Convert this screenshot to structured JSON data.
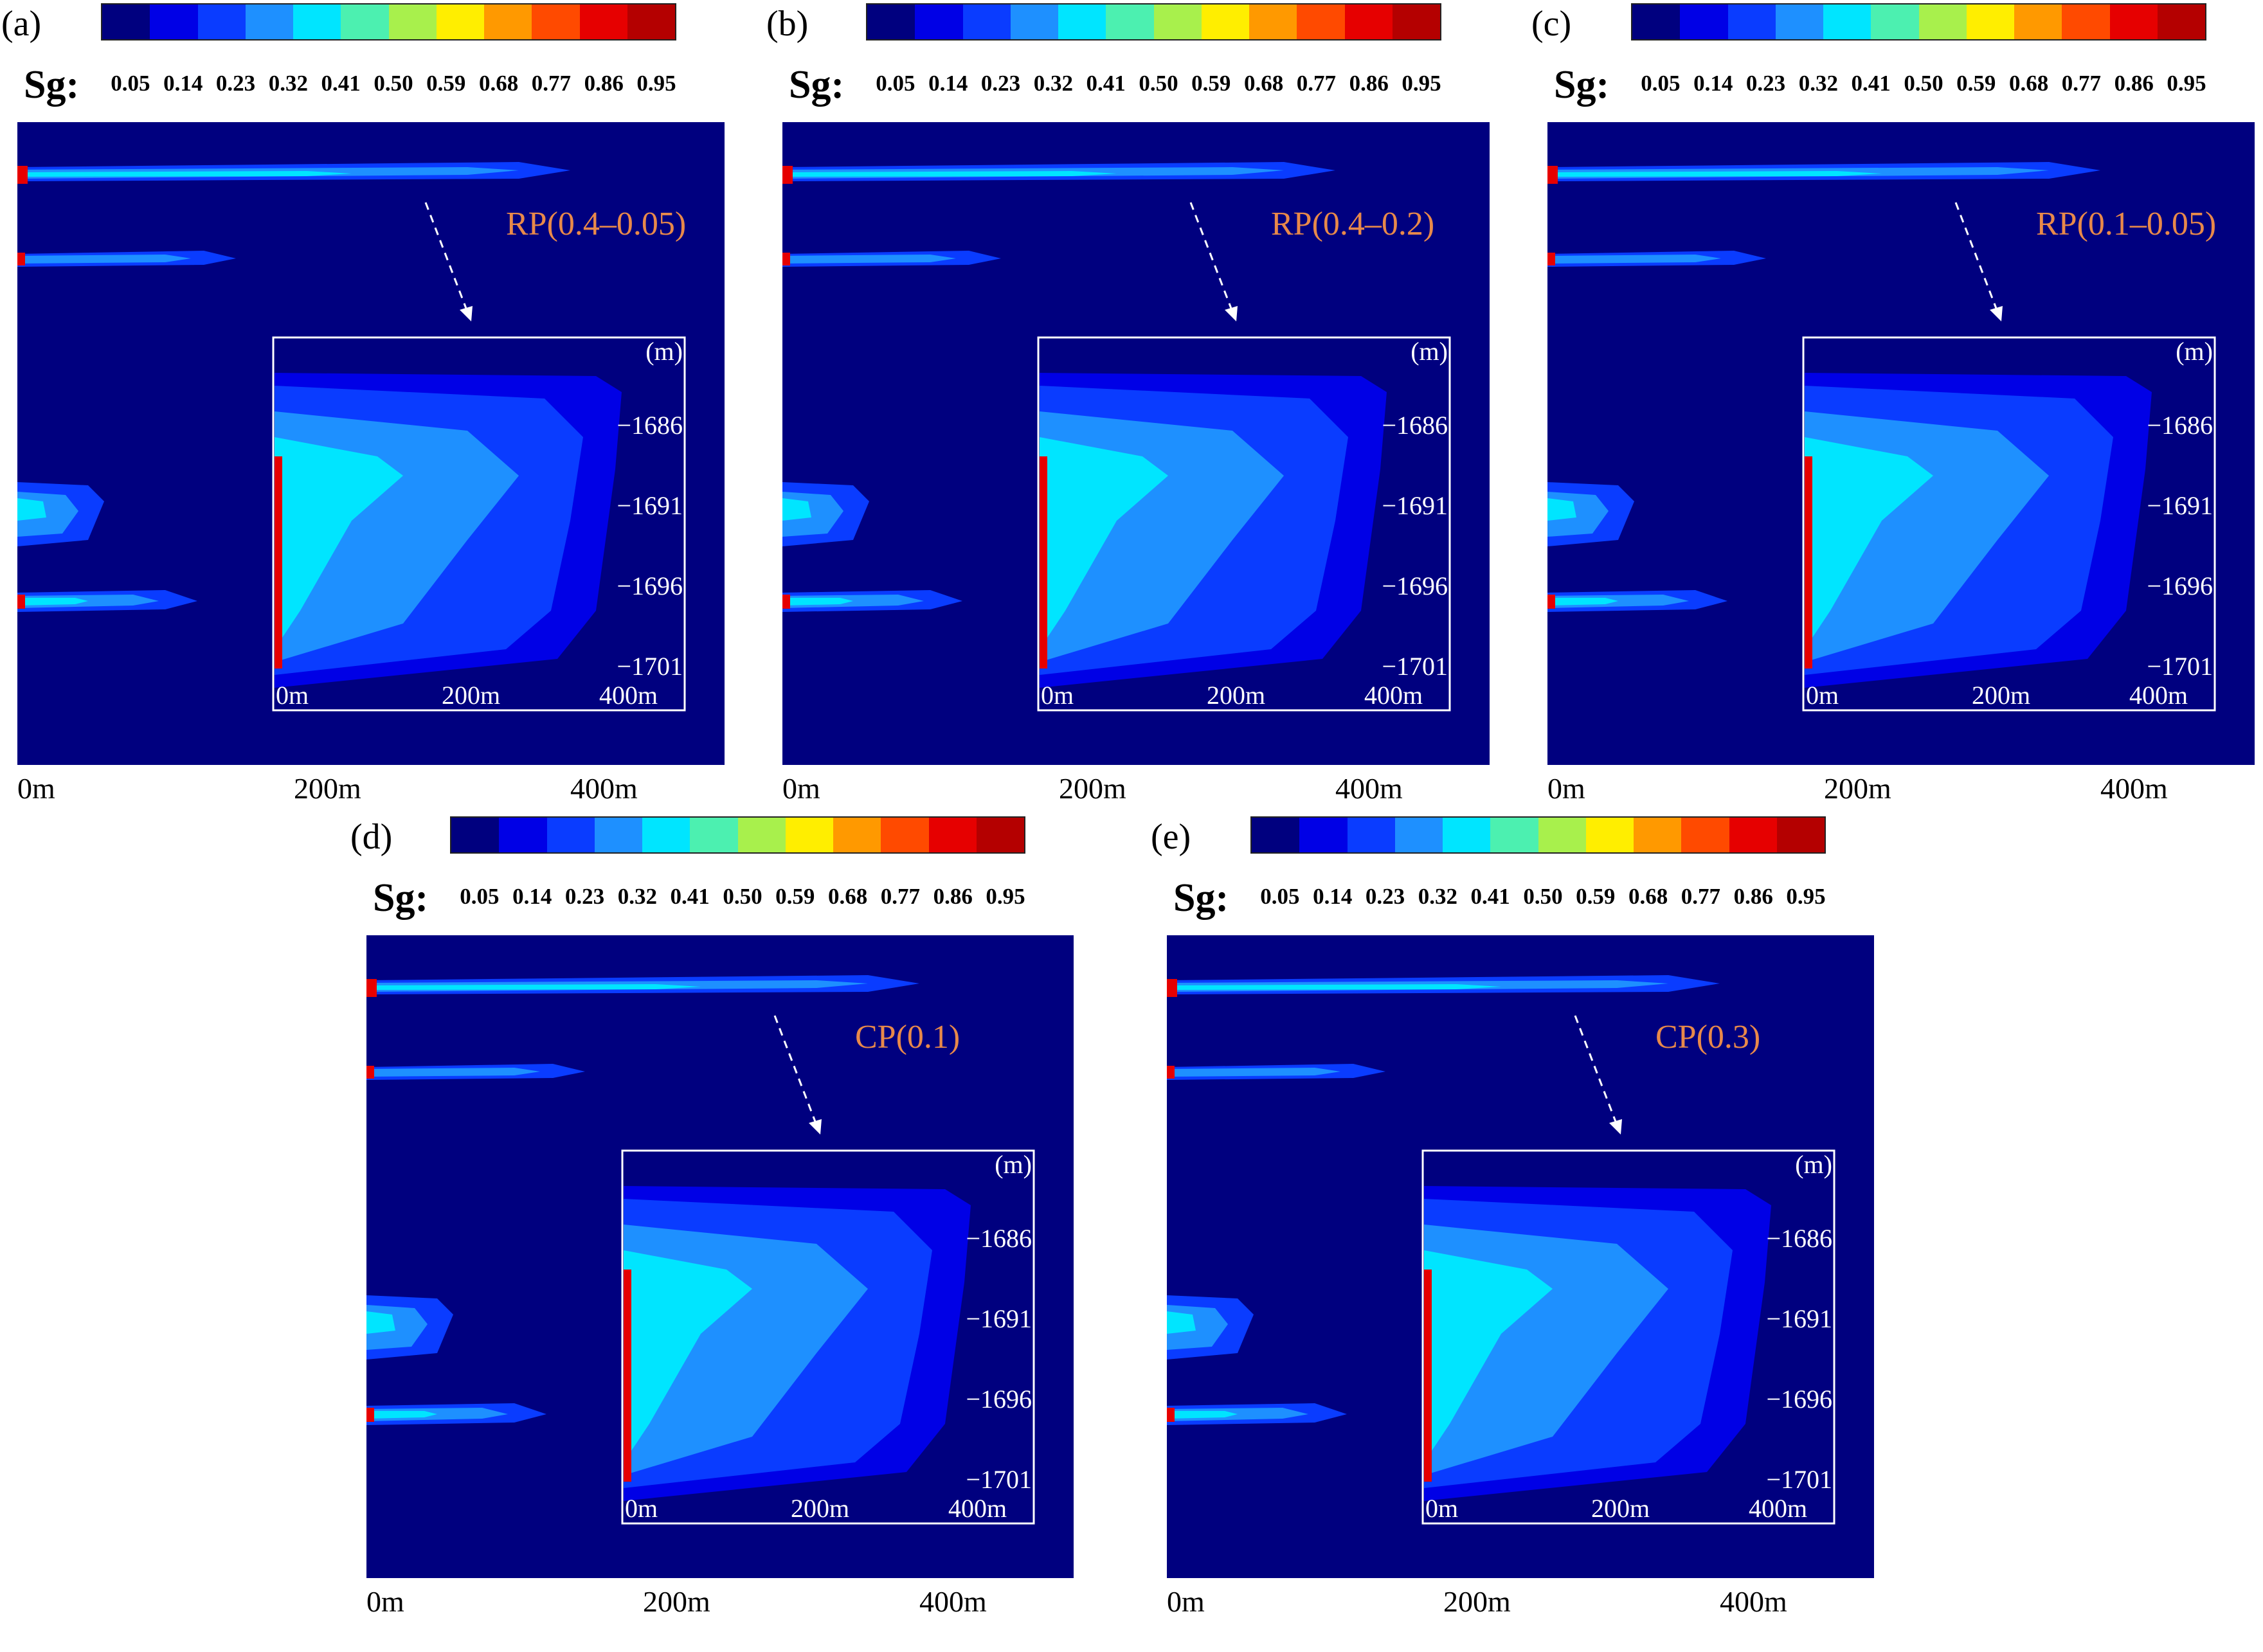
{
  "colorbar": {
    "label": "Sg:",
    "ticks": [
      "0.05",
      "0.14",
      "0.23",
      "0.32",
      "0.41",
      "0.50",
      "0.59",
      "0.68",
      "0.77",
      "0.86",
      "0.95"
    ],
    "colors": [
      "#00007f",
      "#0000e6",
      "#0a3cff",
      "#1e90ff",
      "#00e5ff",
      "#4cf0b0",
      "#a8f04c",
      "#ffee00",
      "#ff9900",
      "#ff4a00",
      "#e60000",
      "#b40000"
    ]
  },
  "axis": {
    "x_ticks": [
      "0m",
      "200m",
      "400m"
    ]
  },
  "inset": {
    "unit": "(m)",
    "y_ticks": [
      "−1686",
      "−1691",
      "−1696",
      "−1701"
    ],
    "x_ticks": [
      "0m",
      "200m",
      "400m"
    ]
  },
  "panels": [
    {
      "label": "(a)",
      "model": "RP(0.4–0.05)"
    },
    {
      "label": "(b)",
      "model": "RP(0.4–0.2)"
    },
    {
      "label": "(c)",
      "model": "RP(0.1–0.05)"
    },
    {
      "label": "(d)",
      "model": "CP(0.1)"
    },
    {
      "label": "(e)",
      "model": "CP(0.3)"
    }
  ],
  "colors": {
    "background": "#00007f",
    "model_label": "#e8894a"
  }
}
